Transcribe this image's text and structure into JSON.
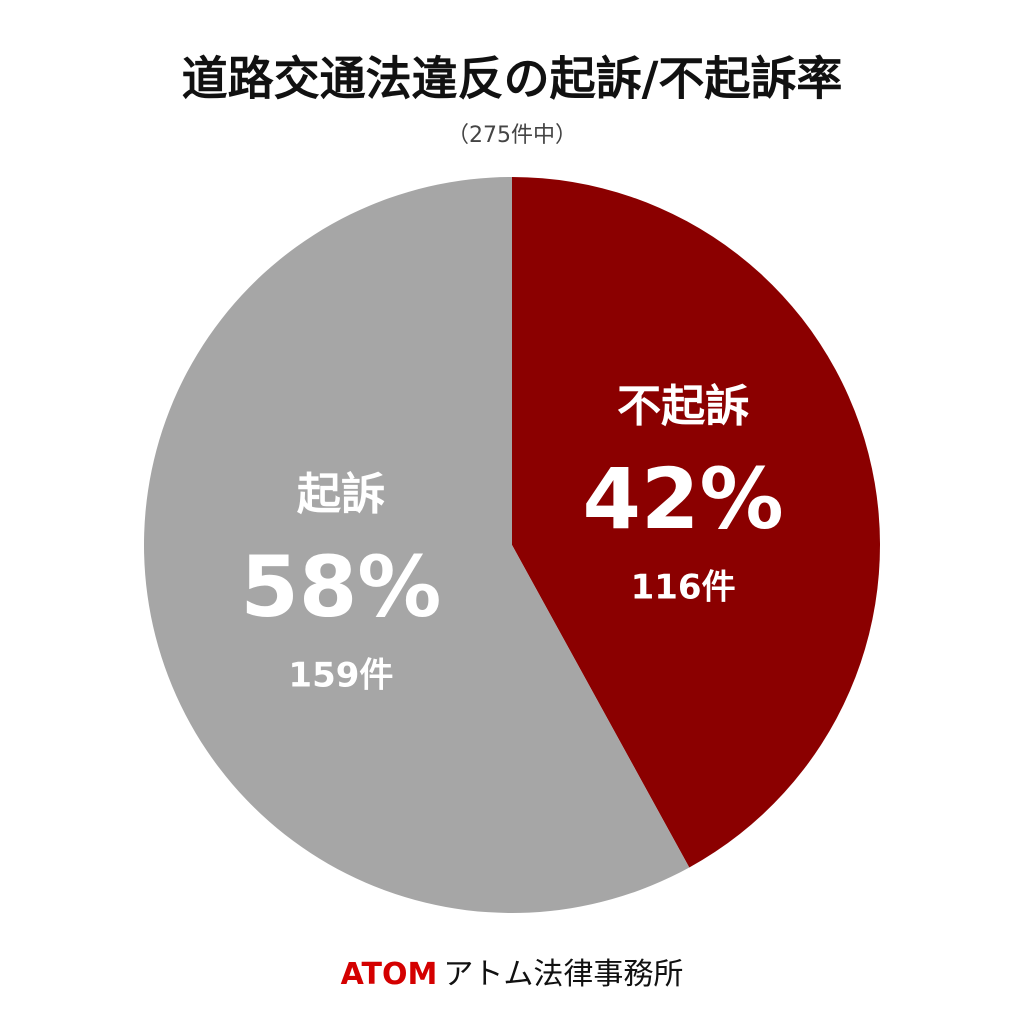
{
  "chart_data": {
    "type": "pie",
    "title": "道路交通法違反の起訴/不起訴率",
    "subtitle": "（275件中）",
    "categories": [
      "不起訴",
      "起訴"
    ],
    "values": [
      42,
      58
    ],
    "value_labels": [
      "42%",
      "58%"
    ],
    "count_labels": [
      "116件",
      "159件"
    ],
    "colors": [
      "#8b0000",
      "#a6a6a6"
    ],
    "start_angle": 0,
    "direction": "clockwise"
  },
  "footer": {
    "brand": "ATOM",
    "name": "アトム法律事務所"
  }
}
